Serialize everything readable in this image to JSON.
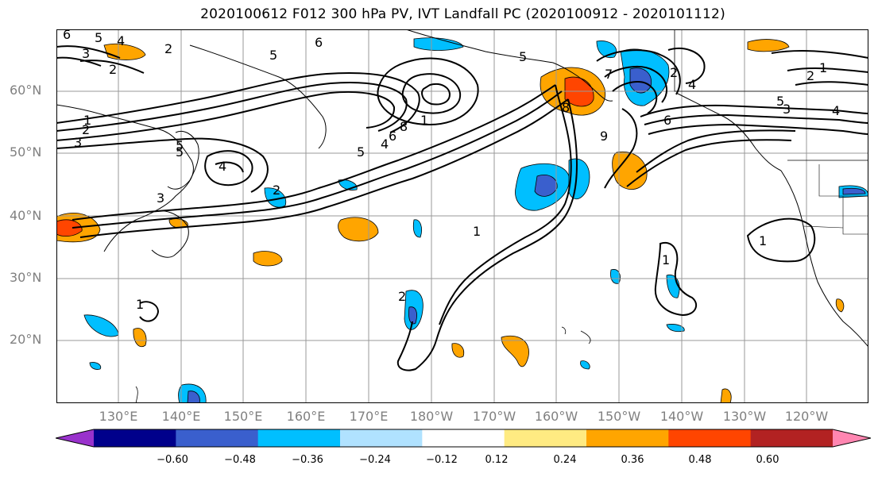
{
  "title": "2020100612 F012 300 hPa PV, IVT Landfall PC (2020100912 - 2020101112)",
  "lat_labels": [
    "60°N",
    "50°N",
    "40°N",
    "30°N",
    "20°N"
  ],
  "lon_labels": [
    "130°E",
    "140°E",
    "150°E",
    "160°E",
    "170°E",
    "180°W",
    "170°W",
    "160°W",
    "150°W",
    "140°W",
    "130°W",
    "120°W"
  ],
  "contour_labels": [
    "6",
    "5",
    "4",
    "3",
    "2",
    "6",
    "5",
    "5",
    "2",
    "1",
    "8",
    "6",
    "4",
    "5",
    "1",
    "2",
    "3",
    "5",
    "4",
    "3",
    "2",
    "1",
    "2",
    "1",
    "9",
    "8",
    "6",
    "5",
    "7",
    "1",
    "2",
    "4",
    "2",
    "1",
    "5",
    "3",
    "4",
    "1"
  ],
  "colorbar": {
    "colors": [
      "#9932cc",
      "#00008b",
      "#3a5fcd",
      "#00bfff",
      "#b0e2ff",
      "#ffffff",
      "#ffeb82",
      "#ffa500",
      "#ff4500",
      "#b22222",
      "#ff86b1"
    ],
    "tick_labels": [
      "−0.60",
      "−0.48",
      "−0.36",
      "−0.24",
      "−0.12",
      "0.12",
      "0.24",
      "0.36",
      "0.48",
      "0.60"
    ]
  }
}
